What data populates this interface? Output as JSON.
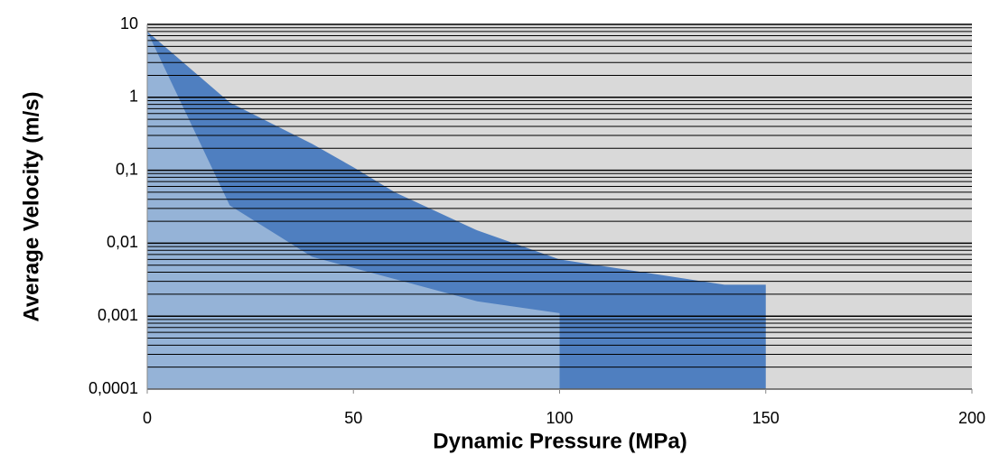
{
  "chart_data": {
    "type": "area",
    "x_label": "Dynamic Pressure (MPa)",
    "y_label": "Average Velocity (m/s)",
    "xlim": [
      0,
      200
    ],
    "xticks": [
      0,
      50,
      100,
      150,
      200
    ],
    "ylim": [
      0.0001,
      10
    ],
    "log_y": true,
    "yticks": [
      {
        "value": 0.0001,
        "label": "0,0001"
      },
      {
        "value": 0.001,
        "label": "0,001"
      },
      {
        "value": 0.01,
        "label": "0,01"
      },
      {
        "value": 0.1,
        "label": "0,1"
      },
      1,
      10
    ],
    "grid": true,
    "background": "#d9d9d9",
    "series": [
      {
        "color": "#4f7fc0",
        "x": [
          0,
          20,
          40,
          50,
          60,
          80,
          100,
          140,
          150,
          150
        ],
        "values": [
          8,
          0.85,
          0.23,
          0.11,
          0.05,
          0.015,
          0.006,
          0.0027,
          0.0027,
          0.0001
        ]
      },
      {
        "color": "#95b3d7",
        "x": [
          0,
          20,
          40,
          80,
          100,
          100
        ],
        "values": [
          8,
          0.033,
          0.0065,
          0.0016,
          0.0011,
          0.0001
        ]
      }
    ]
  }
}
